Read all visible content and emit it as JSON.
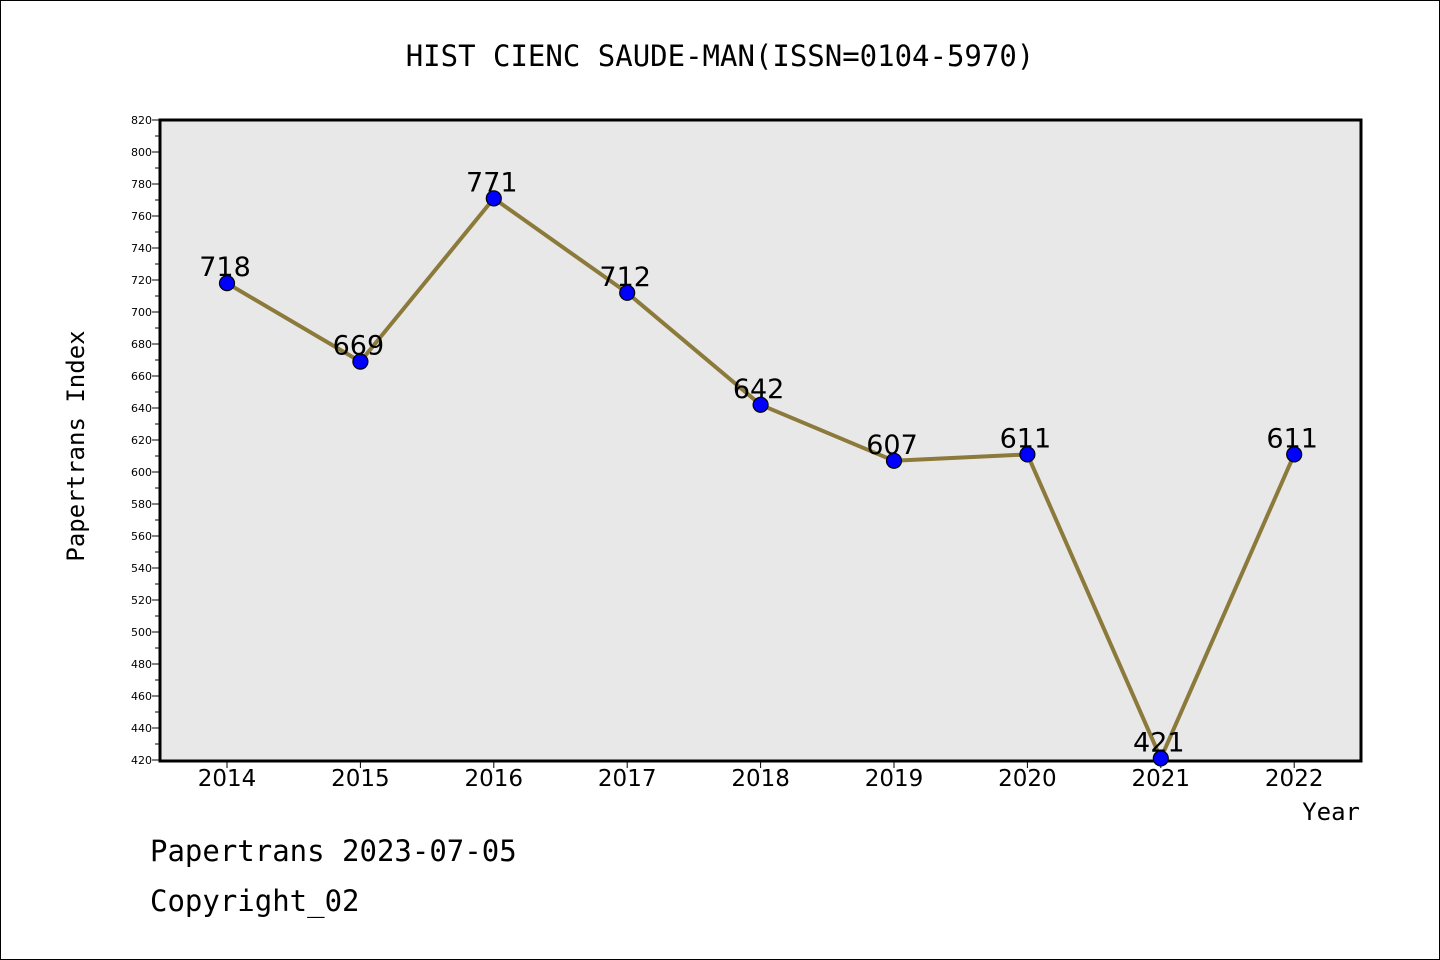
{
  "chart_data": {
    "type": "line",
    "title": "HIST CIENC SAUDE-MAN(ISSN=0104-5970)",
    "xlabel": "Year",
    "ylabel": "Papertrans Index",
    "categories": [
      "2014",
      "2015",
      "2016",
      "2017",
      "2018",
      "2019",
      "2020",
      "2021",
      "2022"
    ],
    "values": [
      718,
      669,
      771,
      712,
      642,
      607,
      611,
      421,
      611
    ],
    "data_labels": [
      "718",
      "669",
      "771",
      "712",
      "642",
      "607",
      "611",
      "421",
      "611"
    ],
    "ylim": [
      420,
      820
    ],
    "ytick_step": 20,
    "yticks": [
      "420",
      "440",
      "460",
      "480",
      "500",
      "520",
      "540",
      "560",
      "580",
      "600",
      "620",
      "640",
      "660",
      "680",
      "700",
      "720",
      "740",
      "760",
      "780",
      "800",
      "820"
    ],
    "grid": false,
    "legend": "none",
    "colors": {
      "plot_bg": "#e8e8e8",
      "line": "#8b7a3a",
      "marker": "#0000ff"
    }
  },
  "footer": {
    "date_line": "Papertrans 2023-07-05",
    "copyright_line": "Copyright_02"
  }
}
